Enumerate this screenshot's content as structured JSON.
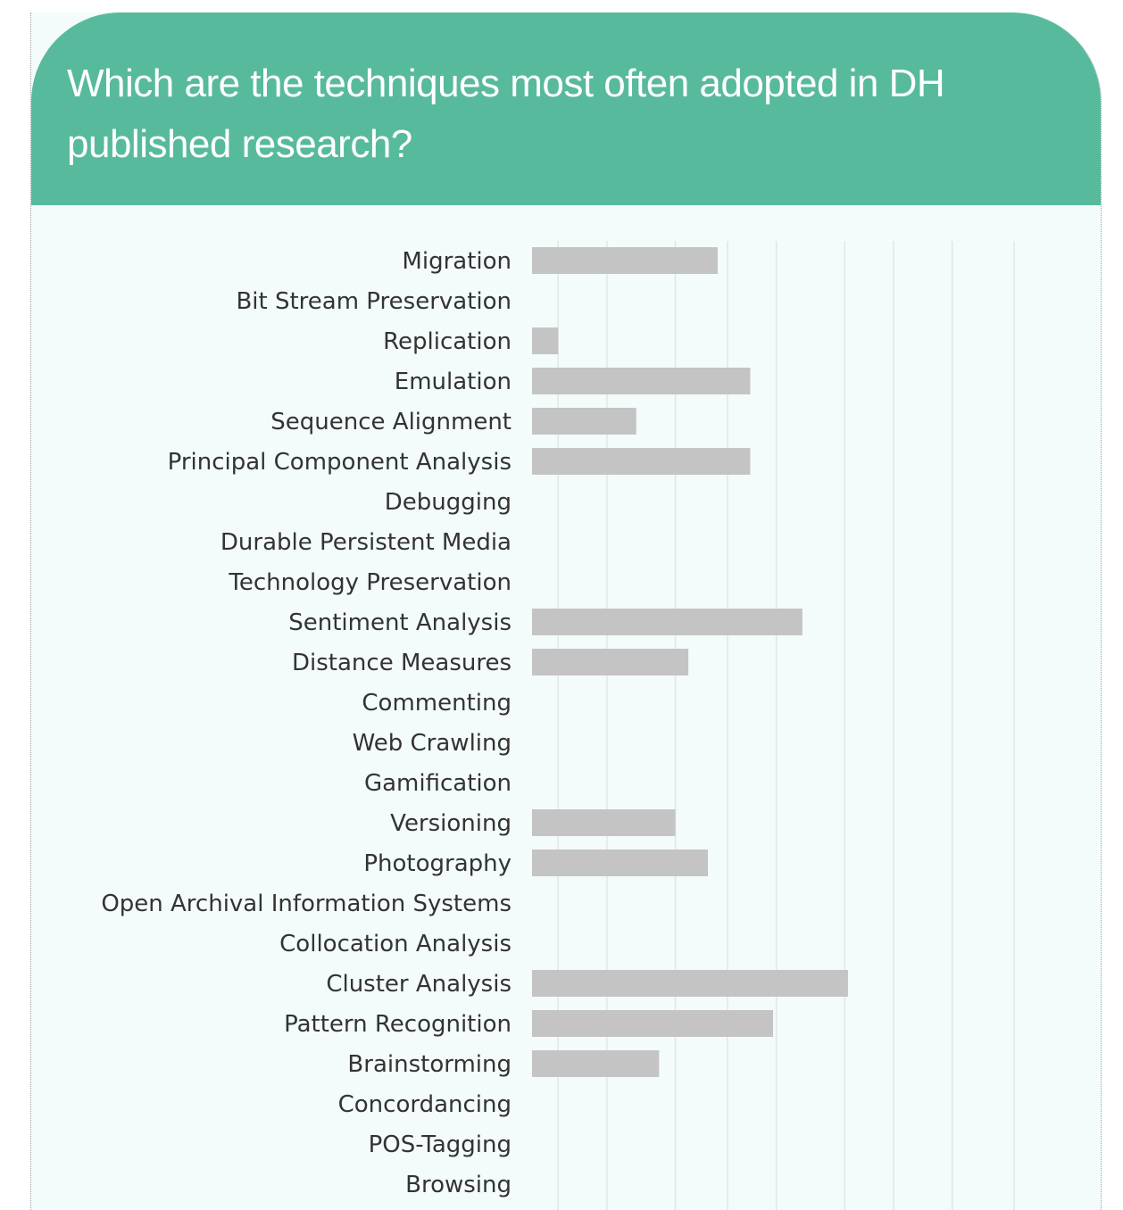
{
  "header": {
    "title": "Which are the techniques most often adopted in DH published research?"
  },
  "colors": {
    "header_background": "#57ba9c",
    "panel_background": "#f4fbfb",
    "bar": "#c4c4c4",
    "gridline": "#e2e6e6",
    "label": "#333333",
    "title": "#ffffff"
  },
  "chart_data": {
    "type": "bar",
    "orientation": "horizontal",
    "title": "Which are the techniques most often adopted in DH published research?",
    "xlabel": "",
    "ylabel": "",
    "grid": true,
    "legend": "none",
    "xlim": [
      0,
      14.8
    ],
    "categories": [
      "Migration",
      "Bit Stream Preservation",
      "Replication",
      "Emulation",
      "Sequence Alignment",
      "Principal Component Analysis",
      "Debugging",
      "Durable Persistent Media",
      "Technology Preservation",
      "Sentiment Analysis",
      "Distance Measures",
      "Commenting",
      "Web Crawling",
      "Gamification",
      "Versioning",
      "Photography",
      "Open Archival Information Systems",
      "Collocation Analysis",
      "Cluster Analysis",
      "Pattern Recognition",
      "Brainstorming",
      "Concordancing",
      "POS-Tagging",
      "Browsing"
    ],
    "values": [
      5.7,
      0,
      0.8,
      6.7,
      3.2,
      6.7,
      0,
      0,
      0,
      8.3,
      4.8,
      0,
      0,
      0,
      4.4,
      5.4,
      0,
      0,
      9.7,
      7.4,
      3.9,
      0,
      0,
      0
    ],
    "gridline_values": [
      0.8,
      2.3,
      4.4,
      6.0,
      7.5,
      9.6,
      11.1,
      12.9,
      14.8
    ]
  }
}
